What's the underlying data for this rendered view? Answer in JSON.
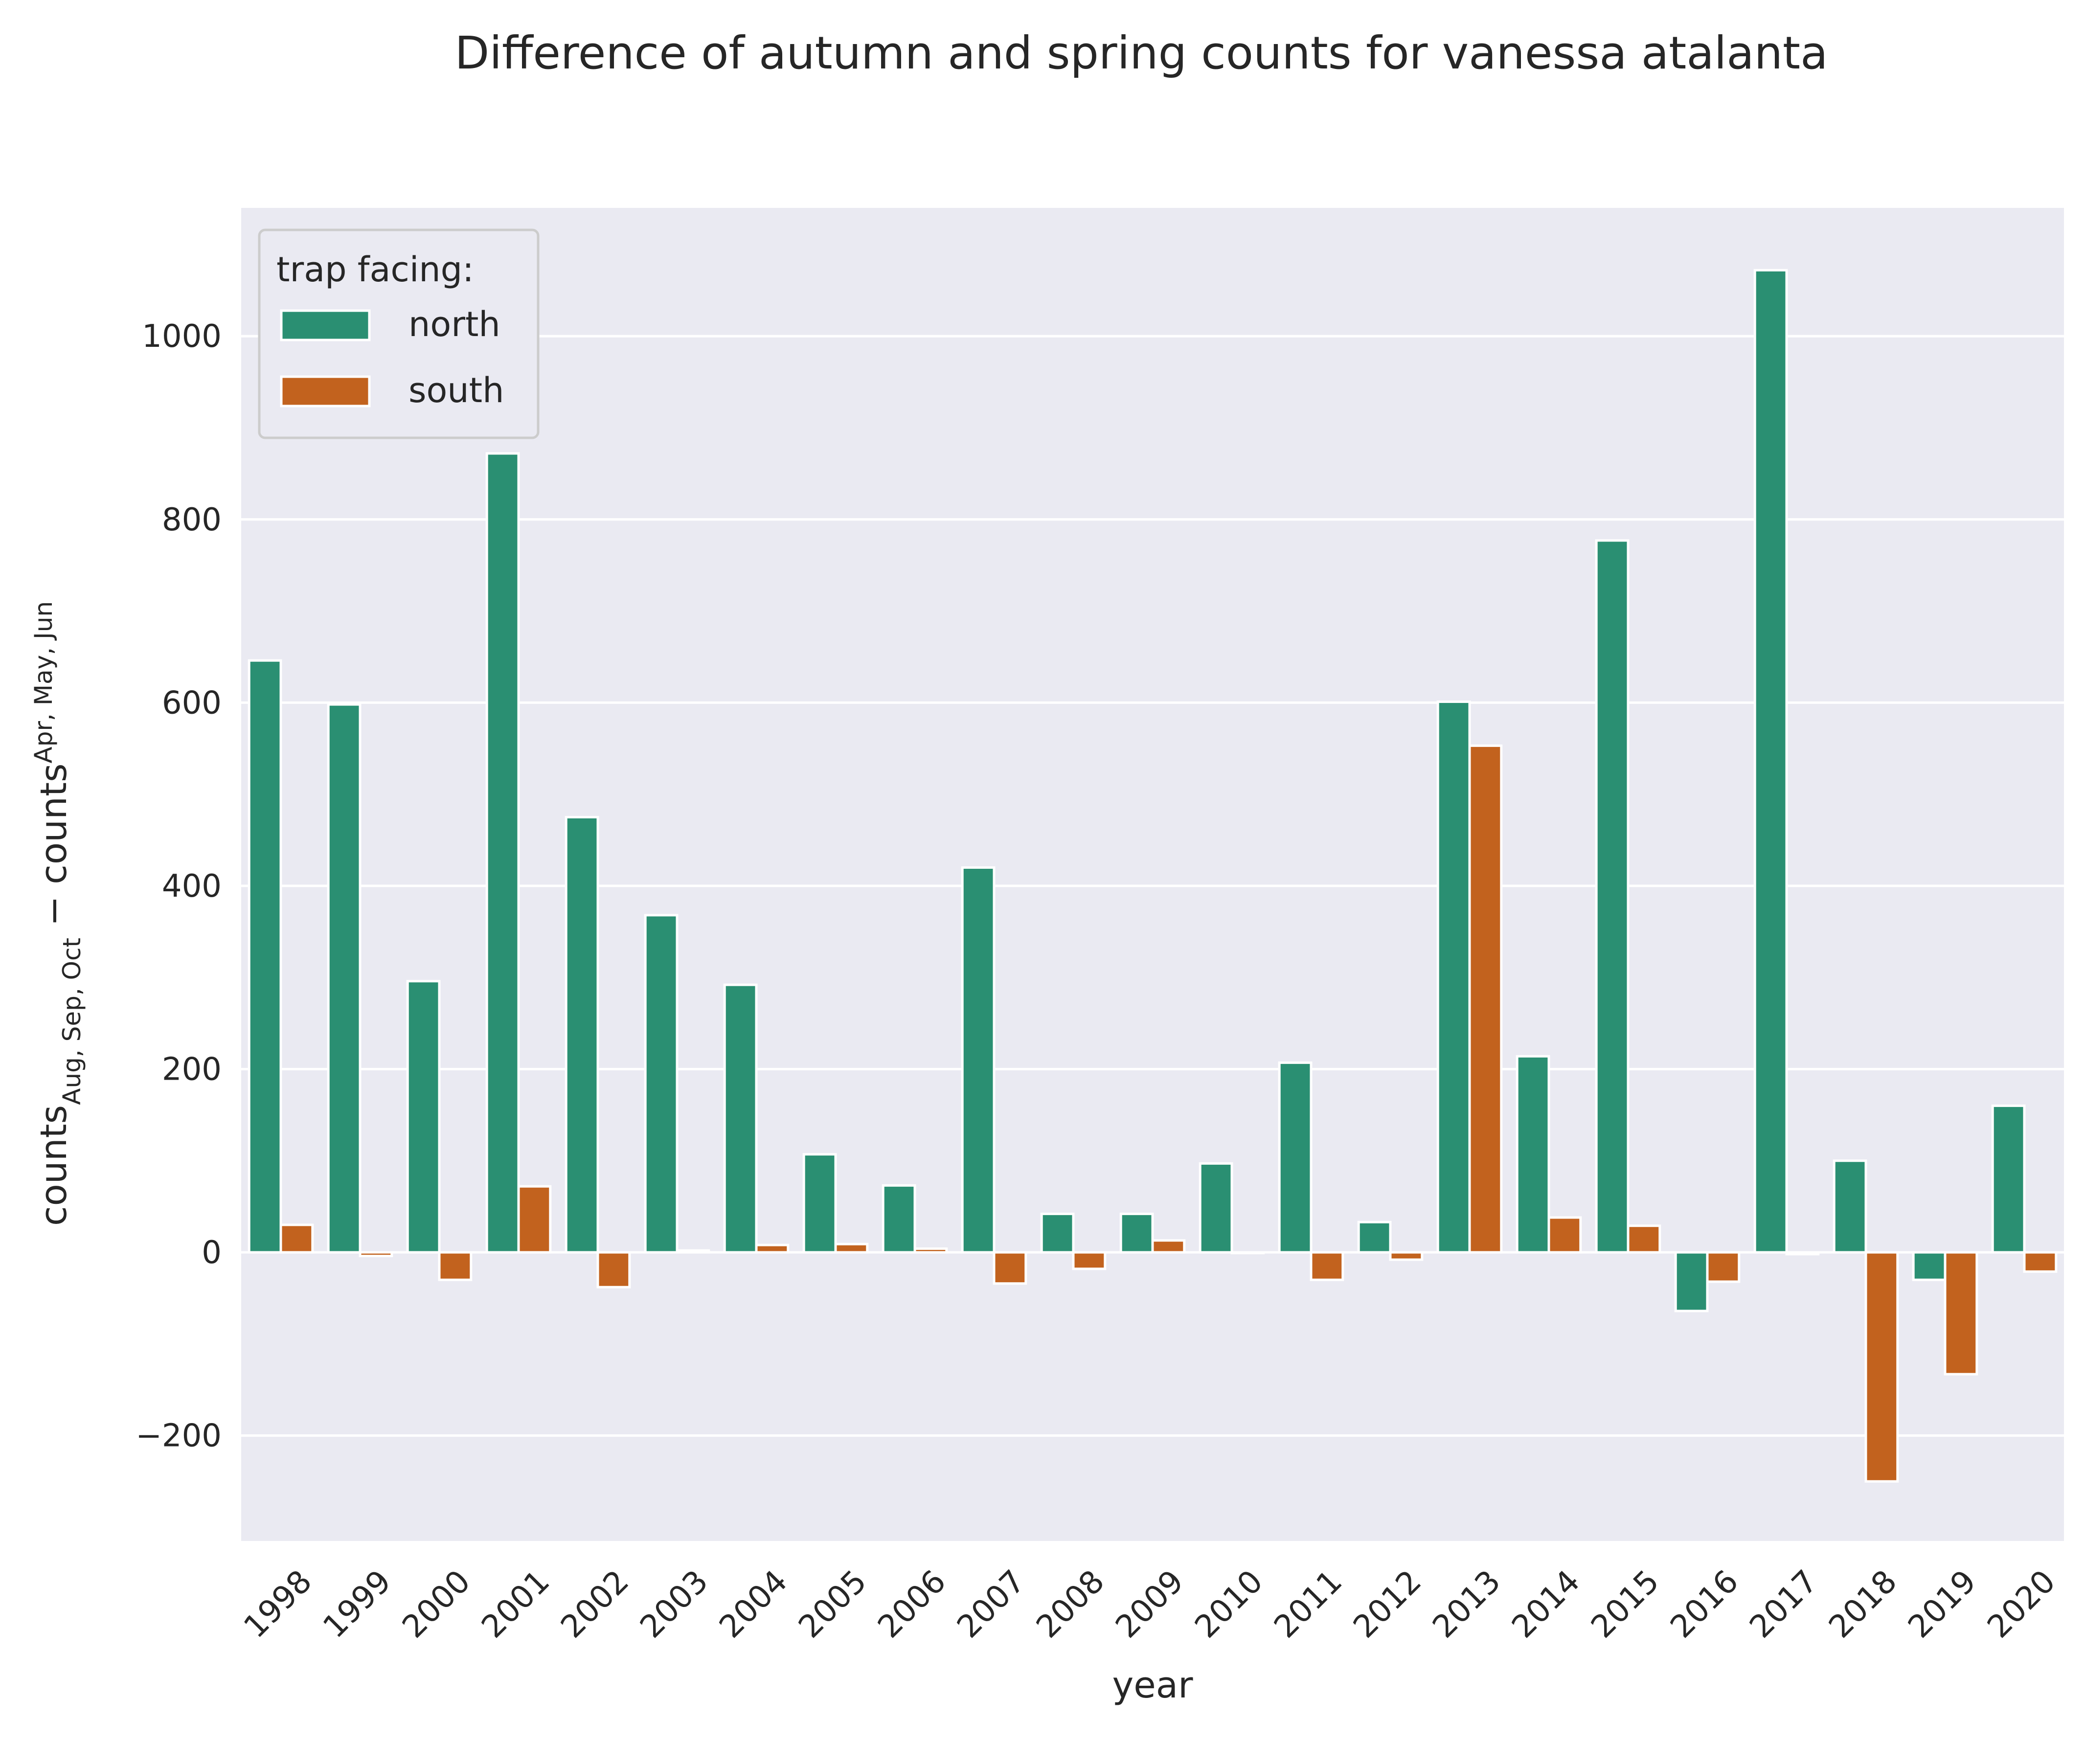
{
  "chart_data": {
    "type": "bar",
    "title": "Difference of autumn and spring counts for vanessa atalanta",
    "xlabel": "year",
    "ylabel": {
      "base1": "counts",
      "sub1": "Aug, Sep, Oct",
      "op": " − ",
      "base2": "counts",
      "sub2": "Apr, May, Jun"
    },
    "ylim": [
      -315,
      1140
    ],
    "yticks": [
      -200,
      0,
      200,
      400,
      600,
      800,
      1000
    ],
    "ytick_labels": [
      "−200",
      "0",
      "200",
      "400",
      "600",
      "800",
      "1000"
    ],
    "grid": true,
    "legend": {
      "title": "trap facing:",
      "placement": "top-left"
    },
    "categories": [
      "1998",
      "1999",
      "2000",
      "2001",
      "2002",
      "2003",
      "2004",
      "2005",
      "2006",
      "2007",
      "2008",
      "2009",
      "2010",
      "2011",
      "2012",
      "2013",
      "2014",
      "2015",
      "2016",
      "2017",
      "2018",
      "2019",
      "2020"
    ],
    "series": [
      {
        "name": "north",
        "color": "#2a8f72",
        "values": [
          646,
          598,
          296,
          872,
          475,
          368,
          292,
          107,
          73,
          420,
          42,
          42,
          97,
          207,
          33,
          601,
          214,
          777,
          -64,
          1072,
          100,
          -30,
          160
        ]
      },
      {
        "name": "south",
        "color": "#c2621e",
        "values": [
          30,
          -4,
          -30,
          72,
          -38,
          2,
          8,
          9,
          4,
          -34,
          -18,
          13,
          0,
          -30,
          -8,
          553,
          38,
          29,
          -32,
          -2,
          -250,
          -133,
          -21
        ]
      }
    ]
  }
}
